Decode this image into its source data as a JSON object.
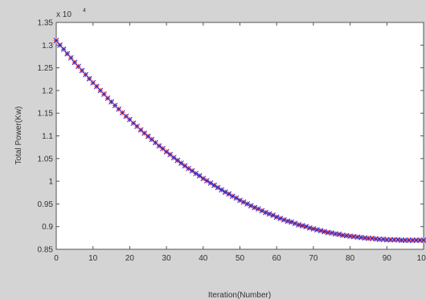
{
  "chart_data": {
    "type": "scatter",
    "title": "",
    "xlabel": "Iteration(Number)",
    "ylabel": "Total Power(Kw)",
    "exponent_label": "x 10",
    "exponent_power": "4",
    "xlim": [
      0,
      100
    ],
    "ylim": [
      0.85,
      1.35
    ],
    "xticks": [
      "0",
      "10",
      "20",
      "30",
      "40",
      "50",
      "60",
      "70",
      "80",
      "90",
      "100"
    ],
    "yticks": [
      "0.85",
      "0.9",
      "0.95",
      "1",
      "1.05",
      "1.1",
      "1.15",
      "1.2",
      "1.25",
      "1.3",
      "1.35"
    ],
    "grid": false,
    "legend": "none",
    "colors": {
      "series_red": "#ff2a2a",
      "series_blue": "#2a2acc"
    },
    "x": [
      0,
      1,
      2,
      3,
      4,
      5,
      6,
      7,
      8,
      9,
      10,
      11,
      12,
      13,
      14,
      15,
      16,
      17,
      18,
      19,
      20,
      21,
      22,
      23,
      24,
      25,
      26,
      27,
      28,
      29,
      30,
      31,
      32,
      33,
      34,
      35,
      36,
      37,
      38,
      39,
      40,
      41,
      42,
      43,
      44,
      45,
      46,
      47,
      48,
      49,
      50,
      51,
      52,
      53,
      54,
      55,
      56,
      57,
      58,
      59,
      60,
      61,
      62,
      63,
      64,
      65,
      66,
      67,
      68,
      69,
      70,
      71,
      72,
      73,
      74,
      75,
      76,
      77,
      78,
      79,
      80,
      81,
      82,
      83,
      84,
      85,
      86,
      87,
      88,
      89,
      90,
      91,
      92,
      93,
      94,
      95,
      96,
      97,
      98,
      99,
      100
    ],
    "series": [
      {
        "marker": "+",
        "color": "#ff2a2a",
        "values": [
          1.31,
          1.3,
          1.291,
          1.281,
          1.272,
          1.262,
          1.253,
          1.244,
          1.235,
          1.226,
          1.217,
          1.209,
          1.2,
          1.192,
          1.183,
          1.175,
          1.167,
          1.159,
          1.151,
          1.143,
          1.136,
          1.128,
          1.121,
          1.113,
          1.106,
          1.099,
          1.092,
          1.085,
          1.078,
          1.072,
          1.065,
          1.059,
          1.052,
          1.046,
          1.04,
          1.034,
          1.028,
          1.023,
          1.017,
          1.012,
          1.006,
          1.001,
          0.996,
          0.991,
          0.986,
          0.981,
          0.976,
          0.972,
          0.967,
          0.963,
          0.958,
          0.954,
          0.95,
          0.946,
          0.942,
          0.939,
          0.935,
          0.931,
          0.928,
          0.925,
          0.921,
          0.918,
          0.915,
          0.912,
          0.91,
          0.907,
          0.904,
          0.902,
          0.9,
          0.897,
          0.895,
          0.893,
          0.891,
          0.889,
          0.887,
          0.886,
          0.884,
          0.883,
          0.881,
          0.88,
          0.879,
          0.878,
          0.877,
          0.876,
          0.875,
          0.874,
          0.874,
          0.873,
          0.872,
          0.872,
          0.871,
          0.871,
          0.871,
          0.871,
          0.87,
          0.87,
          0.87,
          0.87,
          0.87,
          0.87,
          0.87
        ]
      },
      {
        "marker": "x",
        "color": "#2a2acc",
        "values": [
          1.31,
          1.3,
          1.291,
          1.281,
          1.272,
          1.262,
          1.253,
          1.244,
          1.235,
          1.226,
          1.217,
          1.209,
          1.2,
          1.192,
          1.183,
          1.175,
          1.167,
          1.159,
          1.151,
          1.143,
          1.136,
          1.128,
          1.121,
          1.113,
          1.106,
          1.099,
          1.092,
          1.085,
          1.078,
          1.072,
          1.065,
          1.059,
          1.052,
          1.046,
          1.04,
          1.034,
          1.028,
          1.023,
          1.017,
          1.012,
          1.006,
          1.001,
          0.996,
          0.991,
          0.986,
          0.981,
          0.976,
          0.972,
          0.967,
          0.963,
          0.958,
          0.954,
          0.95,
          0.946,
          0.942,
          0.939,
          0.935,
          0.931,
          0.928,
          0.925,
          0.921,
          0.918,
          0.915,
          0.912,
          0.91,
          0.907,
          0.904,
          0.902,
          0.9,
          0.897,
          0.895,
          0.893,
          0.891,
          0.889,
          0.887,
          0.886,
          0.884,
          0.883,
          0.881,
          0.88,
          0.879,
          0.878,
          0.877,
          0.876,
          0.875,
          0.874,
          0.874,
          0.873,
          0.872,
          0.872,
          0.871,
          0.871,
          0.871,
          0.871,
          0.87,
          0.87,
          0.87,
          0.87,
          0.87,
          0.87,
          0.87
        ]
      }
    ]
  }
}
